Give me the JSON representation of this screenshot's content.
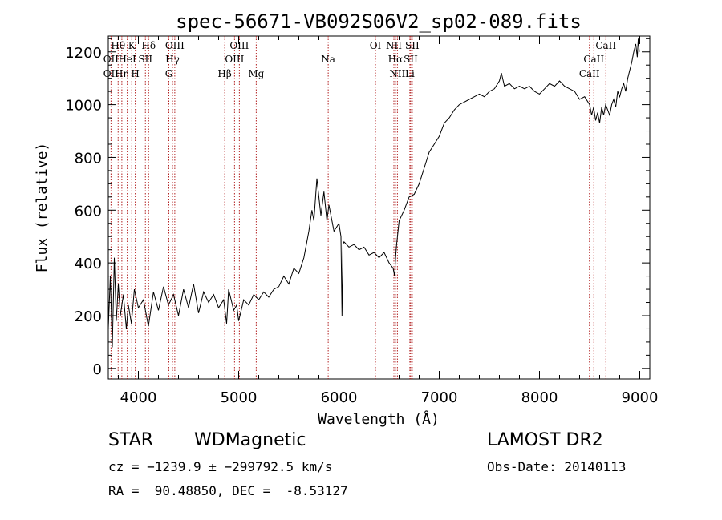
{
  "chart_data": {
    "type": "line",
    "title": "spec-56671-VB092S06V2_sp02-089.fits",
    "xlabel": "Wavelength (Å)",
    "ylabel": "Flux (relative)",
    "xlim": [
      3700,
      9100
    ],
    "ylim": [
      -40,
      1260
    ],
    "x_ticks": [
      4000,
      5000,
      6000,
      7000,
      8000,
      9000
    ],
    "y_ticks": [
      0,
      200,
      400,
      600,
      800,
      1000,
      1200
    ],
    "grid": false,
    "series": [
      {
        "color": "#000000",
        "x": [
          3700,
          3720,
          3740,
          3760,
          3780,
          3800,
          3820,
          3850,
          3880,
          3900,
          3930,
          3960,
          4000,
          4050,
          4100,
          4150,
          4200,
          4250,
          4300,
          4350,
          4400,
          4450,
          4500,
          4550,
          4600,
          4650,
          4700,
          4750,
          4800,
          4850,
          4880,
          4900,
          4950,
          4980,
          5000,
          5050,
          5100,
          5150,
          5200,
          5250,
          5300,
          5350,
          5400,
          5450,
          5500,
          5550,
          5600,
          5650,
          5700,
          5730,
          5750,
          5780,
          5800,
          5820,
          5850,
          5880,
          5900,
          5950,
          6000,
          6020,
          6030,
          6040,
          6050,
          6100,
          6150,
          6200,
          6250,
          6300,
          6350,
          6400,
          6450,
          6500,
          6540,
          6555,
          6565,
          6575,
          6600,
          6650,
          6700,
          6750,
          6800,
          6850,
          6900,
          6950,
          7000,
          7050,
          7100,
          7150,
          7200,
          7250,
          7300,
          7350,
          7400,
          7450,
          7500,
          7550,
          7600,
          7620,
          7650,
          7700,
          7750,
          7800,
          7850,
          7900,
          7950,
          8000,
          8050,
          8100,
          8150,
          8200,
          8250,
          8300,
          8350,
          8400,
          8450,
          8500,
          8520,
          8540,
          8560,
          8580,
          8600,
          8620,
          8640,
          8660,
          8680,
          8700,
          8720,
          8740,
          8760,
          8780,
          8800,
          8820,
          8840,
          8860,
          8880,
          8900,
          8920,
          8940,
          8960,
          8975,
          8985,
          8995
        ],
        "y": [
          150,
          350,
          80,
          420,
          180,
          320,
          200,
          280,
          150,
          240,
          170,
          300,
          230,
          260,
          160,
          290,
          220,
          310,
          240,
          280,
          200,
          300,
          230,
          320,
          210,
          290,
          250,
          280,
          230,
          260,
          170,
          300,
          220,
          240,
          180,
          260,
          240,
          280,
          260,
          290,
          270,
          300,
          310,
          350,
          320,
          380,
          360,
          420,
          520,
          600,
          560,
          720,
          650,
          580,
          670,
          560,
          620,
          520,
          550,
          500,
          200,
          470,
          480,
          460,
          470,
          450,
          460,
          430,
          440,
          420,
          440,
          400,
          380,
          350,
          420,
          470,
          560,
          600,
          650,
          660,
          700,
          760,
          820,
          850,
          880,
          930,
          950,
          980,
          1000,
          1010,
          1020,
          1030,
          1040,
          1030,
          1050,
          1060,
          1090,
          1120,
          1070,
          1080,
          1060,
          1070,
          1060,
          1070,
          1050,
          1040,
          1060,
          1080,
          1070,
          1090,
          1070,
          1060,
          1050,
          1020,
          1030,
          1000,
          960,
          990,
          940,
          970,
          930,
          990,
          960,
          1000,
          980,
          960,
          1000,
          1020,
          990,
          1050,
          1030,
          1060,
          1080,
          1050,
          1100,
          1130,
          1160,
          1200,
          1230,
          1180,
          1250,
          1200
        ]
      }
    ],
    "lines": [
      {
        "x": 3727,
        "top": "OII",
        "bottom": "OII"
      },
      {
        "x": 3798,
        "top": "Hθ",
        "bottom": ""
      },
      {
        "x": 3835,
        "top": "",
        "bottom": "Hη"
      },
      {
        "x": 3889,
        "top": "HeI",
        "bottom": ""
      },
      {
        "x": 3934,
        "top": "K",
        "bottom": ""
      },
      {
        "x": 3969,
        "top": "",
        "bottom": "H"
      },
      {
        "x": 4070,
        "top": "SII",
        "bottom": ""
      },
      {
        "x": 4102,
        "top": "Hδ",
        "bottom": ""
      },
      {
        "x": 4304,
        "top": "",
        "bottom": "G"
      },
      {
        "x": 4340,
        "top": "Hγ",
        "bottom": ""
      },
      {
        "x": 4363,
        "top": "OIII",
        "bottom": ""
      },
      {
        "x": 4861,
        "top": "",
        "bottom": "Hβ"
      },
      {
        "x": 4959,
        "top": "OIII",
        "bottom": ""
      },
      {
        "x": 5007,
        "top": "OIII",
        "bottom": ""
      },
      {
        "x": 5175,
        "top": "",
        "bottom": "Mg"
      },
      {
        "x": 5893,
        "top": "Na",
        "bottom": ""
      },
      {
        "x": 6364,
        "top": "OI",
        "bottom": ""
      },
      {
        "x": 6548,
        "top": "NII",
        "bottom": ""
      },
      {
        "x": 6563,
        "top": "Hα",
        "bottom": ""
      },
      {
        "x": 6583,
        "top": "",
        "bottom": "NII"
      },
      {
        "x": 6707,
        "top": "",
        "bottom": "Li"
      },
      {
        "x": 6716,
        "top": "SII",
        "bottom": ""
      },
      {
        "x": 6731,
        "top": "SII",
        "bottom": ""
      },
      {
        "x": 8498,
        "top": "",
        "bottom": "CaII"
      },
      {
        "x": 8542,
        "top": "CaII",
        "bottom": ""
      },
      {
        "x": 8662,
        "top": "CaII",
        "bottom": ""
      }
    ],
    "line_labels": [
      {
        "text": "Hθ",
        "x": 3798,
        "row": 1
      },
      {
        "text": "K",
        "x": 3934,
        "row": 1
      },
      {
        "text": "Hδ",
        "x": 4102,
        "row": 1
      },
      {
        "text": "OIII",
        "x": 4363,
        "row": 1
      },
      {
        "text": "OIII",
        "x": 5007,
        "row": 1
      },
      {
        "text": "OI",
        "x": 6364,
        "row": 1
      },
      {
        "text": "NII",
        "x": 6548,
        "row": 1
      },
      {
        "text": "SII",
        "x": 6731,
        "row": 1
      },
      {
        "text": "CaII",
        "x": 8662,
        "row": 1
      },
      {
        "text": "OII",
        "x": 3727,
        "row": 2
      },
      {
        "text": "HeI",
        "x": 3889,
        "row": 2
      },
      {
        "text": "SII",
        "x": 4070,
        "row": 2
      },
      {
        "text": "Hγ",
        "x": 4340,
        "row": 2
      },
      {
        "text": "OIII",
        "x": 4959,
        "row": 2
      },
      {
        "text": "Na",
        "x": 5893,
        "row": 2
      },
      {
        "text": "Hα",
        "x": 6563,
        "row": 2
      },
      {
        "text": "SII",
        "x": 6716,
        "row": 2
      },
      {
        "text": "CaII",
        "x": 8542,
        "row": 2
      },
      {
        "text": "OII",
        "x": 3727,
        "row": 3
      },
      {
        "text": "Hη",
        "x": 3835,
        "row": 3
      },
      {
        "text": "H",
        "x": 3969,
        "row": 3
      },
      {
        "text": "G",
        "x": 4304,
        "row": 3
      },
      {
        "text": "Hβ",
        "x": 4861,
        "row": 3
      },
      {
        "text": "Mg",
        "x": 5175,
        "row": 3
      },
      {
        "text": "NII",
        "x": 6583,
        "row": 3
      },
      {
        "text": "Li",
        "x": 6707,
        "row": 3
      },
      {
        "text": "CaII",
        "x": 8498,
        "row": 3
      }
    ],
    "line_color": "#b22222"
  },
  "info": {
    "object_type": "STAR",
    "subclass": "WDMagnetic",
    "survey": "LAMOST DR2",
    "redshift": "cz = −1239.9 ± −299792.5 km/s",
    "obs_date": "Obs-Date: 20140113",
    "coords": "RA =  90.48850, DEC =  -8.53127"
  }
}
